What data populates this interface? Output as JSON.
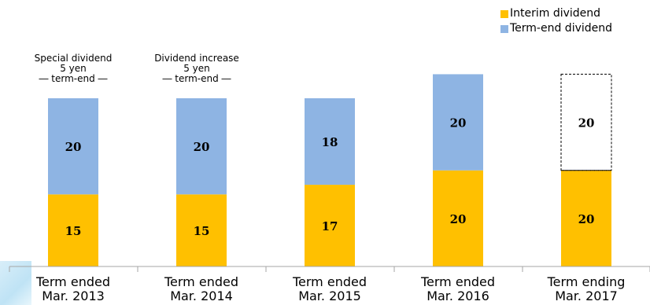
{
  "chart_data": {
    "type": "bar",
    "stacked": true,
    "categories": [
      [
        "Term ended",
        "Mar. 2013"
      ],
      [
        "Term ended",
        "Mar. 2014"
      ],
      [
        "Term ended",
        "Mar. 2015"
      ],
      [
        "Term ended",
        "Mar. 2016"
      ],
      [
        "Term ending",
        "Mar. 2017"
      ]
    ],
    "series": [
      {
        "name": "Interim dividend",
        "values": [
          15,
          15,
          17,
          20,
          20
        ],
        "color": "#ffc000"
      },
      {
        "name": "Term-end dividend",
        "values": [
          20,
          20,
          18,
          20,
          20
        ],
        "color": "#8eb4e3"
      }
    ],
    "forecast_index": 4,
    "ylim": [
      0,
      45
    ],
    "legend_position": "top-right",
    "annotations": [
      {
        "category_index": 0,
        "lines": [
          "Special dividend",
          "5 yen",
          "― term-end ―"
        ]
      },
      {
        "category_index": 1,
        "lines": [
          "Dividend increase",
          "5 yen",
          "― term-end ―"
        ]
      }
    ]
  }
}
